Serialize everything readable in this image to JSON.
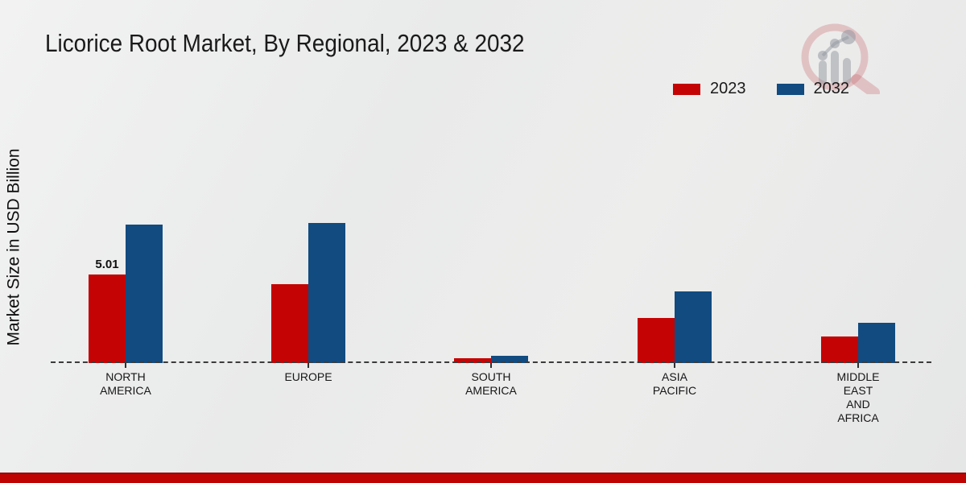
{
  "chart_data": {
    "type": "bar",
    "title": "Licorice Root Market, By Regional, 2023 & 2032",
    "ylabel": "Market Size in USD Billion",
    "xlabel": "",
    "ylim": [
      0,
      8.5
    ],
    "grid": false,
    "legend_position": "top-right",
    "baseline_style": "dashed",
    "categories": [
      "NORTH\nAMERICA",
      "EUROPE",
      "SOUTH\nAMERICA",
      "ASIA\nPACIFIC",
      "MIDDLE\nEAST\nAND\nAFRICA"
    ],
    "series": [
      {
        "name": "2023",
        "color": "#c40404",
        "values": [
          5.01,
          4.45,
          0.27,
          2.55,
          1.5
        ]
      },
      {
        "name": "2032",
        "color": "#114b80",
        "values": [
          7.8,
          7.9,
          0.4,
          4.05,
          2.25
        ]
      }
    ],
    "value_labels": [
      {
        "series_index": 0,
        "category_index": 0,
        "text": "5.01"
      }
    ]
  },
  "legend": {
    "items": [
      {
        "label": "2023",
        "color": "#c40404"
      },
      {
        "label": "2032",
        "color": "#114b80"
      }
    ]
  },
  "watermark": {
    "name": "market-research-future-logo"
  },
  "footer": {
    "band_color": "#bf0202"
  }
}
